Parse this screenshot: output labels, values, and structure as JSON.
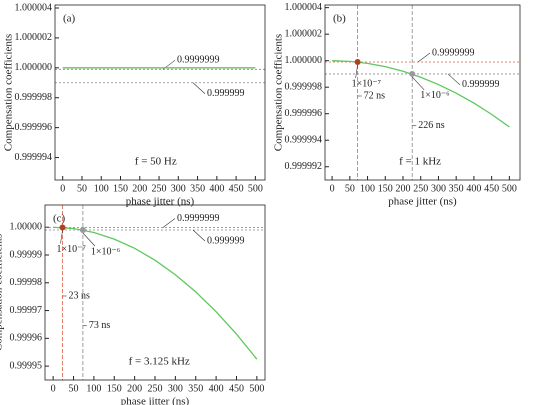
{
  "chart_data": [
    {
      "type": "line",
      "label": "(a)",
      "annotation": "f = 50 Hz",
      "xlabel": "phase jitter (ns)",
      "ylabel": "Compensation coefficients",
      "xlim": [
        -20,
        525
      ],
      "ylim": [
        0.9999925,
        1.0000042
      ],
      "xticks": [
        0,
        50,
        100,
        150,
        200,
        250,
        300,
        350,
        400,
        450,
        500
      ],
      "yticks": [
        0.999994,
        0.999996,
        0.999998,
        {
          "value": 1,
          "label": "1.000000"
        },
        1.000002,
        1.000004
      ],
      "x": [
        0,
        500
      ],
      "values": [
        1,
        1
      ],
      "color": "#5ec85e",
      "hlines": [
        {
          "value": 0.9999999,
          "label": "0.9999999",
          "color": "#e06040"
        },
        {
          "value": 0.999999,
          "label": "0.999999",
          "color": "#888888"
        }
      ],
      "vlines": [],
      "points": []
    },
    {
      "type": "line",
      "label": "(b)",
      "annotation": "f = 1 kHz",
      "xlabel": "phase jitter (ns)",
      "ylabel": "Compensation coefficients",
      "xlim": [
        -20,
        530
      ],
      "ylim": [
        0.999991,
        1.0000042
      ],
      "xticks": [
        0,
        50,
        100,
        150,
        200,
        250,
        300,
        350,
        400,
        450,
        500
      ],
      "yticks": [
        0.999992,
        0.999994,
        0.999996,
        0.999998,
        {
          "value": 1,
          "label": "1.000000"
        },
        1.000002,
        1.000004
      ],
      "x": [
        0,
        50,
        100,
        150,
        200,
        250,
        300,
        350,
        400,
        450,
        500
      ],
      "values": [
        1,
        0.99999995,
        0.9999998,
        0.99999955,
        0.9999992,
        0.99999875,
        0.9999982,
        0.99999755,
        0.9999968,
        0.99999595,
        0.999995
      ],
      "color": "#5ec85e",
      "hlines": [
        {
          "value": 0.9999999,
          "label": "0.9999999",
          "color": "#e06040"
        },
        {
          "value": 0.999999,
          "label": "0.999999",
          "color": "#888888"
        }
      ],
      "vlines": [
        {
          "value": 72,
          "label": "72 ns",
          "color": "#e06040"
        },
        {
          "value": 226,
          "label": "226 ns",
          "color": "#888888"
        }
      ],
      "points": [
        {
          "x": 72,
          "y": 0.9999999,
          "label": "1×10⁻⁷",
          "color": "#b04020"
        },
        {
          "x": 226,
          "y": 0.999999,
          "label": "1×10⁻⁶",
          "color": "#999999"
        }
      ]
    },
    {
      "type": "line",
      "label": "(c)",
      "annotation": "f = 3.125 kHz",
      "xlabel": "phase jitter (ns)",
      "ylabel": "Compensation coefficients",
      "xlim": [
        -20,
        520
      ],
      "ylim": [
        0.999945,
        1.000008
      ],
      "xticks": [
        0,
        50,
        100,
        150,
        200,
        250,
        300,
        350,
        400,
        450,
        500
      ],
      "yticks": [
        0.99995,
        0.99996,
        0.99997,
        0.99998,
        0.99999,
        {
          "value": 1,
          "label": "1.00000"
        }
      ],
      "x": [
        0,
        50,
        100,
        150,
        200,
        250,
        300,
        350,
        400,
        450,
        500
      ],
      "values": [
        1,
        0.999999525,
        0.9999981,
        0.999995725,
        0.9999924,
        0.999988125,
        0.9999829,
        0.999976725,
        0.9999696,
        0.999961525,
        0.9999525
      ],
      "color": "#5ec85e",
      "hlines": [
        {
          "value": 0.9999999,
          "label": "0.9999999",
          "color": "#e06040"
        },
        {
          "value": 0.999999,
          "label": "0.999999",
          "color": "#888888"
        }
      ],
      "vlines": [
        {
          "value": 23,
          "label": "23 ns",
          "color": "#e06040"
        },
        {
          "value": 73,
          "label": "73 ns",
          "color": "#888888"
        }
      ],
      "points": [
        {
          "x": 23,
          "y": 0.9999999,
          "label": "1×10⁻⁷",
          "color": "#b04020"
        },
        {
          "x": 73,
          "y": 0.999999,
          "label": "1×10⁻⁶",
          "color": "#999999"
        }
      ]
    }
  ]
}
